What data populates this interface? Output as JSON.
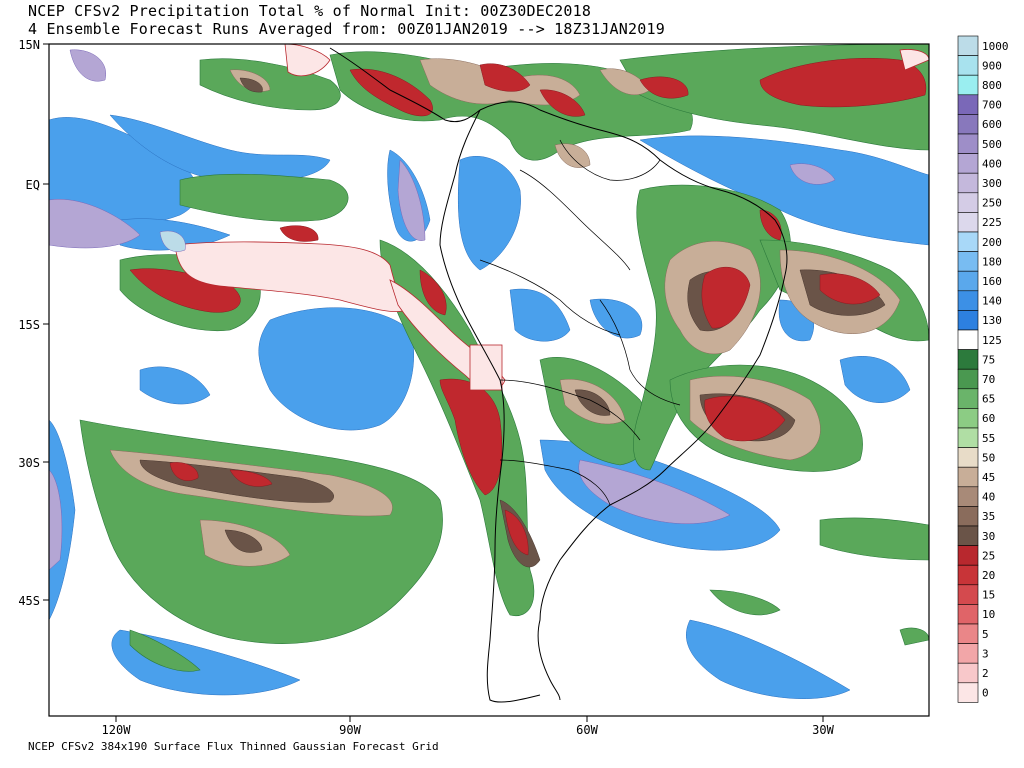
{
  "title": {
    "line1": "NCEP CFSv2 Precipitation Total % of Normal Init: 00Z30DEC2018",
    "line2": "4 Ensemble Forecast Runs Averaged from: 00Z01JAN2019 --> 18Z31JAN2019"
  },
  "footer": "NCEP CFSv2 384x190 Surface Flux Thinned Gaussian Forecast Grid",
  "axes": {
    "lat_labels": [
      "15N",
      "EQ",
      "15S",
      "30S",
      "45S"
    ],
    "lon_labels": [
      "120W",
      "90W",
      "60W",
      "30W"
    ]
  },
  "legend": {
    "levels": [
      "1000",
      "900",
      "800",
      "700",
      "600",
      "500",
      "400",
      "300",
      "250",
      "225",
      "200",
      "180",
      "160",
      "140",
      "130",
      "125",
      "75",
      "70",
      "65",
      "60",
      "55",
      "50",
      "45",
      "40",
      "35",
      "30",
      "25",
      "20",
      "15",
      "10",
      "5",
      "3",
      "2",
      "0"
    ],
    "colors": [
      "#bcdce8",
      "#a8e2ee",
      "#9aeef0",
      "#7a68b8",
      "#8878bc",
      "#9e8ec8",
      "#b4a6d4",
      "#c4b8dc",
      "#d4cce6",
      "#dcd8ec",
      "#a8d8f8",
      "#78bcf2",
      "#5aa8ec",
      "#3c90e6",
      "#2d80e0",
      "#ffffff",
      "#2c7a3c",
      "#4a9850",
      "#6ab46a",
      "#8ccc84",
      "#b0dea4",
      "#e8dcc8",
      "#c8ae98",
      "#a88a78",
      "#8a6c5c",
      "#6a5448",
      "#b8282e",
      "#c83438",
      "#d44a4e",
      "#e06468",
      "#ea8688",
      "#f2a6a8",
      "#f8c8ca",
      "#fce6e6"
    ]
  },
  "colors": {
    "green": "#5aa85a",
    "green_dark": "#2c7a3c",
    "blue": "#4aa0ec",
    "lavender": "#b4a6d4",
    "brown": "#8a6c5c",
    "red": "#c0282e",
    "pink": "#fce6e6",
    "land_line": "#000000"
  }
}
